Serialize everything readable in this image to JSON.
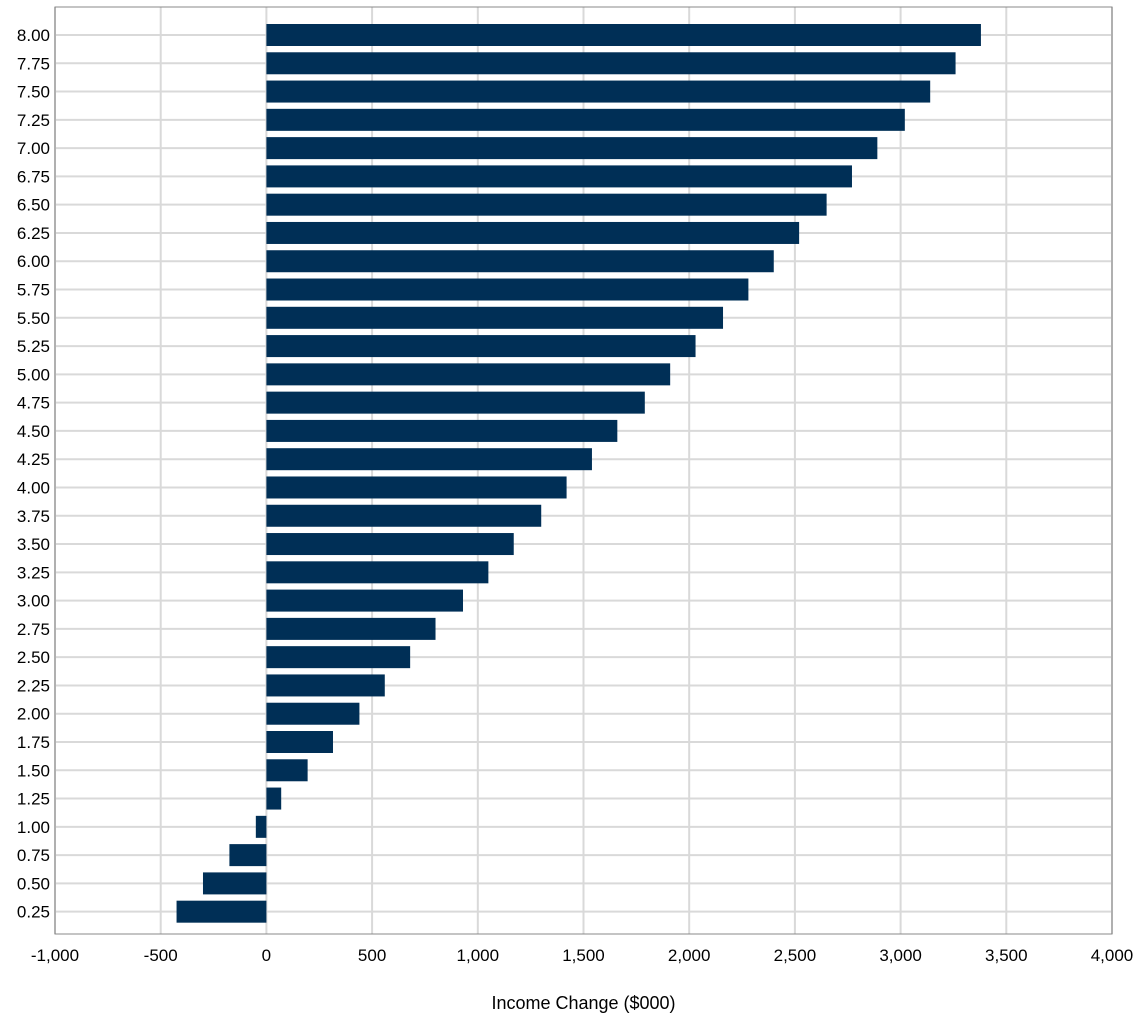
{
  "chart_data": {
    "type": "bar",
    "orientation": "horizontal",
    "title": "",
    "xlabel": "Income Change ($000)",
    "ylabel": "",
    "xlim": [
      -1000,
      4000
    ],
    "x_ticks": [
      -1000,
      -500,
      0,
      500,
      1000,
      1500,
      2000,
      2500,
      3000,
      3500,
      4000
    ],
    "x_tick_labels": [
      "-1,000",
      "-500",
      "0",
      "500",
      "1,000",
      "1,500",
      "2,000",
      "2,500",
      "3,000",
      "3,500",
      "4,000"
    ],
    "grid": true,
    "legend": "none",
    "bar_color": "#002f56",
    "categories": [
      "8.00",
      "7.75",
      "7.50",
      "7.25",
      "7.00",
      "6.75",
      "6.50",
      "6.25",
      "6.00",
      "5.75",
      "5.50",
      "5.25",
      "5.00",
      "4.75",
      "4.50",
      "4.25",
      "4.00",
      "3.75",
      "3.50",
      "3.25",
      "3.00",
      "2.75",
      "2.50",
      "2.25",
      "2.00",
      "1.75",
      "1.50",
      "1.25",
      "1.00",
      "0.75",
      "0.50",
      "0.25"
    ],
    "values": [
      3380,
      3260,
      3140,
      3020,
      2890,
      2770,
      2650,
      2520,
      2400,
      2280,
      2160,
      2030,
      1910,
      1790,
      1660,
      1540,
      1420,
      1300,
      1170,
      1050,
      930,
      800,
      680,
      560,
      440,
      315,
      195,
      70,
      -50,
      -175,
      -300,
      -425
    ]
  }
}
